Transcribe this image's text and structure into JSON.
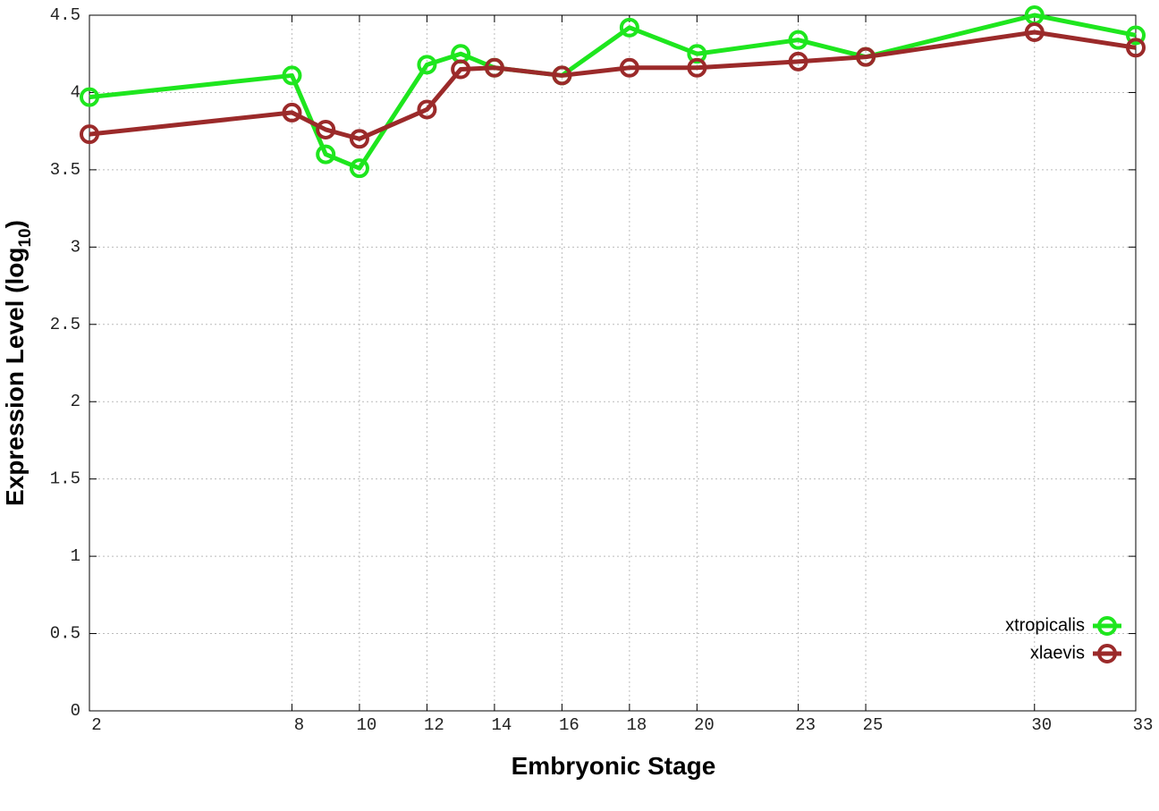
{
  "chart_data": {
    "type": "line",
    "xlabel": "Embryonic Stage",
    "ylabel": "Expression Level (log",
    "ylabel_sub": "10",
    "ylabel_end": ")",
    "x": [
      2,
      8,
      9,
      10,
      12,
      13,
      14,
      16,
      18,
      20,
      23,
      25,
      30,
      33
    ],
    "series": [
      {
        "name": "xtropicalis",
        "color": "#1ee61e",
        "values": [
          3.97,
          4.11,
          3.6,
          3.51,
          4.18,
          4.25,
          4.16,
          4.11,
          4.42,
          4.25,
          4.34,
          4.23,
          4.5,
          4.37
        ]
      },
      {
        "name": "xlaevis",
        "color": "#9b2a2a",
        "values": [
          3.73,
          3.87,
          3.76,
          3.7,
          3.89,
          4.15,
          4.16,
          4.11,
          4.16,
          4.16,
          4.2,
          4.23,
          4.39,
          4.29
        ]
      }
    ],
    "xlim": [
      2,
      33
    ],
    "xticks": [
      2,
      8,
      10,
      12,
      14,
      16,
      18,
      20,
      23,
      25,
      30,
      33
    ],
    "ylim": [
      0,
      4.5
    ],
    "yticks": [
      0,
      0.5,
      1,
      1.5,
      2,
      2.5,
      3,
      3.5,
      4,
      4.5
    ],
    "grid": true,
    "legend": "lower right"
  }
}
